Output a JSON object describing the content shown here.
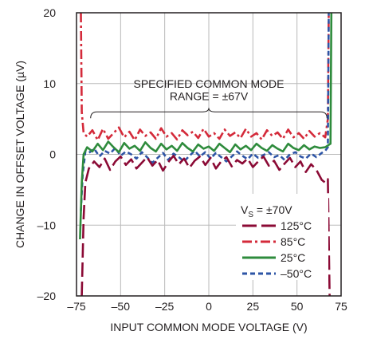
{
  "chart_data": {
    "type": "line",
    "xlabel": "INPUT COMMON MODE VOLTAGE (V)",
    "ylabel": "CHANGE IN OFFSET VOLTAGE (µV)",
    "xlim": [
      -75,
      75
    ],
    "ylim": [
      -20,
      20
    ],
    "x_ticks": [
      "–75",
      "–50",
      "–25",
      "0",
      "25",
      "50",
      "75"
    ],
    "x_tick_values": [
      -75,
      -50,
      -25,
      0,
      25,
      50,
      75
    ],
    "y_ticks": [
      "20",
      "10",
      "0",
      "–10",
      "–20"
    ],
    "y_tick_values": [
      20,
      10,
      0,
      -10,
      -20
    ],
    "grid": true,
    "annotation": {
      "line1": "SPECIFIED COMMON MODE",
      "line2": "RANGE = ±67V",
      "brace_range": [
        -67,
        67
      ]
    },
    "legend": {
      "title_main": "V",
      "title_sub": "S",
      "title_rest": " = ±70V",
      "placement": "bottom-right"
    },
    "series": [
      {
        "name": "125°C",
        "color": "#8b0a35",
        "dash": "long-dash",
        "x": [
          -72,
          -71,
          -70,
          -68,
          -65,
          -62,
          -59,
          -56,
          -53,
          -50,
          -47,
          -44,
          -41,
          -38,
          -35,
          -32,
          -29,
          -26,
          -23,
          -20,
          -17,
          -14,
          -11,
          -8,
          -5,
          -2,
          1,
          4,
          7,
          10,
          13,
          16,
          19,
          22,
          25,
          28,
          31,
          34,
          37,
          40,
          43,
          46,
          49,
          52,
          55,
          58,
          61,
          64,
          66,
          67.5,
          68.5
        ],
        "y": [
          -20,
          -9,
          -4,
          -2,
          -1,
          -1.8,
          -0.6,
          -2.2,
          -1,
          -0.3,
          -1.5,
          -0.7,
          -2,
          -1.2,
          -0.4,
          -1.6,
          -0.8,
          -2.3,
          -1.1,
          -0.2,
          -1.4,
          -0.6,
          -1.9,
          -0.9,
          -0.3,
          -1.5,
          -0.5,
          -2,
          -1,
          -0.4,
          -1.7,
          -0.8,
          -1.3,
          -0.6,
          -1.8,
          -1,
          -0.3,
          -1.6,
          -0.9,
          -2.2,
          -1.3,
          -0.5,
          -1.8,
          -1,
          -2.5,
          -1.4,
          -2.2,
          -3.6,
          -4,
          -3.5,
          -20
        ]
      },
      {
        "name": "85°C",
        "color": "#d42a3a",
        "dash": "dash-dot",
        "x": [
          -72.5,
          -72,
          -71,
          -69,
          -66,
          -63,
          -60,
          -57,
          -54,
          -51,
          -48,
          -45,
          -42,
          -39,
          -36,
          -33,
          -30,
          -27,
          -24,
          -21,
          -18,
          -15,
          -12,
          -9,
          -6,
          -3,
          0,
          3,
          6,
          9,
          12,
          15,
          18,
          21,
          24,
          27,
          30,
          33,
          36,
          39,
          42,
          45,
          48,
          51,
          54,
          57,
          60,
          63,
          66,
          67.5,
          68
        ],
        "y": [
          20,
          6,
          3,
          2.5,
          3.4,
          2,
          3.6,
          2.2,
          3,
          3.8,
          2.4,
          3.2,
          2,
          3.5,
          2.6,
          3.1,
          2.2,
          3.7,
          2.5,
          3,
          2.1,
          3.4,
          2.7,
          3.2,
          2.3,
          3.6,
          2.5,
          3,
          2.2,
          3.5,
          2.6,
          3.1,
          2.3,
          3.6,
          2.5,
          3,
          2.1,
          3.4,
          2.6,
          3.1,
          2.2,
          3.5,
          2.4,
          3,
          2.2,
          3.3,
          2.5,
          3,
          2.4,
          5,
          20
        ]
      },
      {
        "name": "25°C",
        "color": "#2e8b3c",
        "dash": "solid",
        "x": [
          -73,
          -72,
          -71,
          -69,
          -66,
          -63,
          -60,
          -57,
          -54,
          -51,
          -48,
          -45,
          -42,
          -39,
          -36,
          -33,
          -30,
          -27,
          -24,
          -21,
          -18,
          -15,
          -12,
          -9,
          -6,
          -3,
          0,
          3,
          6,
          9,
          12,
          15,
          18,
          21,
          24,
          27,
          30,
          33,
          36,
          39,
          42,
          45,
          48,
          51,
          54,
          57,
          60,
          63,
          66,
          69,
          69.5,
          70
        ],
        "y": [
          -12,
          -4,
          0,
          1,
          0.4,
          1.5,
          0.6,
          1.8,
          1,
          0.3,
          1.6,
          0.8,
          1.2,
          0.5,
          1.7,
          0.9,
          0.4,
          1.5,
          0.7,
          1.2,
          0.5,
          1.6,
          0.9,
          0.4,
          1.4,
          0.8,
          1.1,
          0.5,
          1.5,
          0.9,
          0.3,
          1.4,
          0.7,
          1.2,
          0.6,
          1.5,
          0.9,
          0.5,
          1.3,
          0.8,
          0.4,
          1.5,
          0.9,
          0.6,
          1.3,
          0.7,
          1.1,
          0.9,
          1,
          1.5,
          20,
          20
        ]
      },
      {
        "name": "–50°C",
        "color": "#2e55a6",
        "dash": "short-dash",
        "x": [
          -72.5,
          -71.5,
          -70,
          -68,
          -65,
          -62,
          -59,
          -56,
          -53,
          -50,
          -47,
          -44,
          -41,
          -38,
          -35,
          -32,
          -29,
          -26,
          -23,
          -20,
          -17,
          -14,
          -11,
          -8,
          -5,
          -2,
          1,
          4,
          7,
          10,
          13,
          16,
          19,
          22,
          25,
          28,
          31,
          34,
          37,
          40,
          43,
          46,
          49,
          52,
          55,
          58,
          61,
          64,
          66,
          67.5,
          68
        ],
        "y": [
          -8,
          -3,
          0.4,
          0.2,
          0.8,
          -0.3,
          0.5,
          0.1,
          0.9,
          -0.2,
          0.4,
          0,
          -0.6,
          0.3,
          -0.4,
          -1.2,
          -0.5,
          0.2,
          -0.8,
          0.1,
          -0.4,
          -1,
          -0.2,
          0.5,
          -0.3,
          0.3,
          -0.6,
          0.2,
          -0.4,
          -1,
          -0.3,
          0.4,
          -0.2,
          -0.7,
          0.1,
          -0.5,
          -0.1,
          0.3,
          -0.4,
          -0.1,
          -0.8,
          0,
          0.3,
          -0.3,
          -0.6,
          0.1,
          -0.4,
          0.2,
          0.5,
          1,
          20
        ]
      }
    ]
  }
}
